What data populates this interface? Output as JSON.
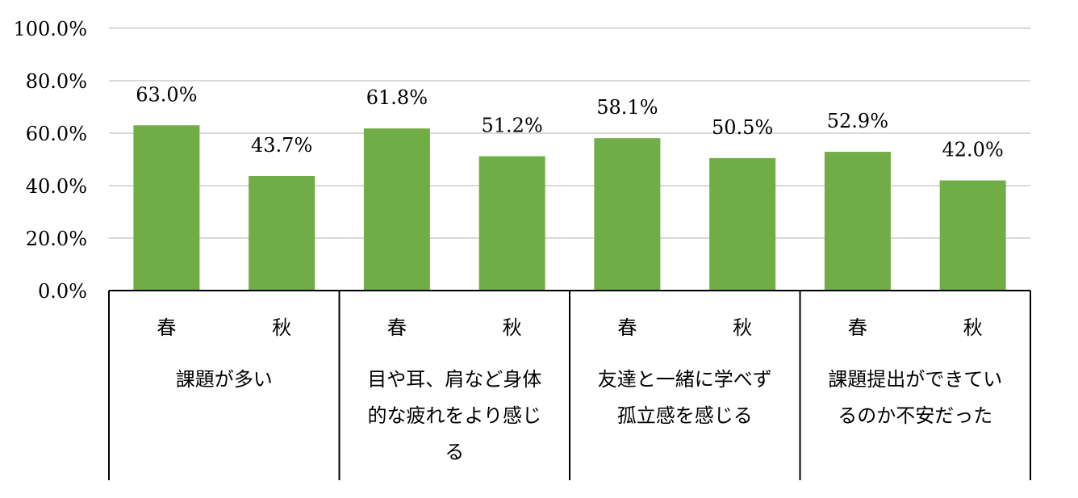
{
  "chart_data": {
    "type": "bar",
    "title": "",
    "xlabel": "",
    "ylabel": "",
    "ylim": [
      0,
      100
    ],
    "y_ticks": [
      "0.0%",
      "20.0%",
      "40.0%",
      "60.0%",
      "80.0%",
      "100.0%"
    ],
    "y_tick_values": [
      0,
      20,
      40,
      60,
      80,
      100
    ],
    "grid": true,
    "bar_color": "#70AD47",
    "groups": [
      {
        "lines": [
          "課題が多い"
        ],
        "bars": [
          {
            "label": "春",
            "value": 63.0,
            "value_text": "63.0%"
          },
          {
            "label": "秋",
            "value": 43.7,
            "value_text": "43.7%"
          }
        ]
      },
      {
        "lines": [
          "目や耳、肩など身体",
          "的な疲れをより感じ",
          "る"
        ],
        "bars": [
          {
            "label": "春",
            "value": 61.8,
            "value_text": "61.8%"
          },
          {
            "label": "秋",
            "value": 51.2,
            "value_text": "51.2%"
          }
        ]
      },
      {
        "lines": [
          "友達と一緒に学べず",
          "孤立感を感じる"
        ],
        "bars": [
          {
            "label": "春",
            "value": 58.1,
            "value_text": "58.1%"
          },
          {
            "label": "秋",
            "value": 50.5,
            "value_text": "50.5%"
          }
        ]
      },
      {
        "lines": [
          "課題提出ができてい",
          "るのか不安だった"
        ],
        "bars": [
          {
            "label": "春",
            "value": 52.9,
            "value_text": "52.9%"
          },
          {
            "label": "秋",
            "value": 42.0,
            "value_text": "42.0%"
          }
        ]
      }
    ]
  }
}
